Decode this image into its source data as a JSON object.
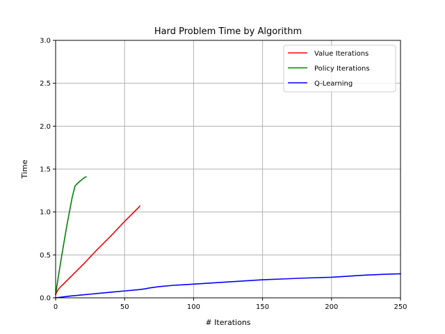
{
  "chart_data": {
    "type": "line",
    "title": "Hard Problem Time by Algorithm",
    "xlabel": "# Iterations",
    "ylabel": "Time",
    "xlim": [
      0,
      250
    ],
    "ylim": [
      0,
      3.0
    ],
    "xticks": [
      0,
      50,
      100,
      150,
      200,
      250
    ],
    "xtick_labels": [
      "0",
      "50",
      "100",
      "150",
      "200",
      "250"
    ],
    "yticks": [
      0,
      0.5,
      1.0,
      1.5,
      2.0,
      2.5,
      3.0
    ],
    "ytick_labels": [
      "0.0",
      "0.5",
      "1.0",
      "1.5",
      "2.0",
      "2.5",
      "3.0"
    ],
    "grid": true,
    "legend_position": "top-right",
    "series": [
      {
        "name": "Value Iterations",
        "color": "#ff0000",
        "x": [
          0,
          1,
          2,
          3,
          5,
          10,
          20,
          30,
          40,
          50,
          60,
          61
        ],
        "y": [
          0.04,
          0.07,
          0.1,
          0.12,
          0.15,
          0.23,
          0.39,
          0.56,
          0.72,
          0.89,
          1.05,
          1.07
        ]
      },
      {
        "name": "Policy Iterations",
        "color": "#008000",
        "x": [
          0,
          2,
          4,
          6,
          8,
          10,
          12,
          14,
          15,
          17,
          20,
          22
        ],
        "y": [
          0.04,
          0.25,
          0.45,
          0.64,
          0.83,
          1.0,
          1.17,
          1.3,
          1.32,
          1.35,
          1.39,
          1.41
        ]
      },
      {
        "name": "Q-Learning",
        "color": "#0000ff",
        "x": [
          0,
          5,
          10,
          20,
          30,
          40,
          50,
          60,
          65,
          68,
          75,
          85,
          100,
          110,
          125,
          140,
          150,
          165,
          180,
          200,
          210,
          225,
          240,
          250
        ],
        "y": [
          0.0,
          0.01,
          0.02,
          0.035,
          0.05,
          0.065,
          0.08,
          0.095,
          0.105,
          0.115,
          0.13,
          0.145,
          0.16,
          0.17,
          0.185,
          0.2,
          0.21,
          0.22,
          0.23,
          0.24,
          0.25,
          0.265,
          0.275,
          0.28
        ]
      }
    ]
  }
}
